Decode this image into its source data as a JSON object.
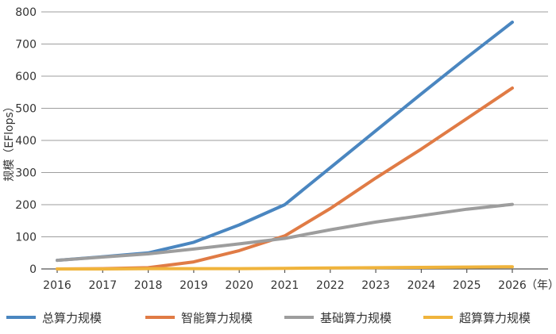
{
  "chart_data": {
    "type": "line",
    "ylabel": "规模（EFlops）",
    "x_unit": "（年）",
    "x": [
      2016,
      2017,
      2018,
      2019,
      2020,
      2021,
      2022,
      2023,
      2024,
      2025,
      2026
    ],
    "ylim": [
      0,
      800
    ],
    "yticks": [
      0,
      100,
      200,
      300,
      400,
      500,
      600,
      700,
      800
    ],
    "grid": true,
    "legend_position": "bottom",
    "series": [
      {
        "name": "总算力规模",
        "color": "#4a86c0",
        "values": [
          27,
          38,
          50,
          83,
          137,
          200,
          315,
          430,
          545,
          658,
          768
        ]
      },
      {
        "name": "智能算力规模",
        "color": "#e07b45",
        "values": [
          0,
          1,
          4,
          22,
          57,
          103,
          188,
          283,
          373,
          468,
          563
        ]
      },
      {
        "name": "基础算力规模",
        "color": "#9d9d9d",
        "values": [
          27,
          37,
          47,
          62,
          78,
          95,
          122,
          146,
          166,
          186,
          201
        ]
      },
      {
        "name": "超算算力规模",
        "color": "#f0b43c",
        "values": [
          0,
          0,
          1,
          1,
          1,
          2,
          3,
          4,
          5,
          6,
          7
        ]
      }
    ]
  }
}
